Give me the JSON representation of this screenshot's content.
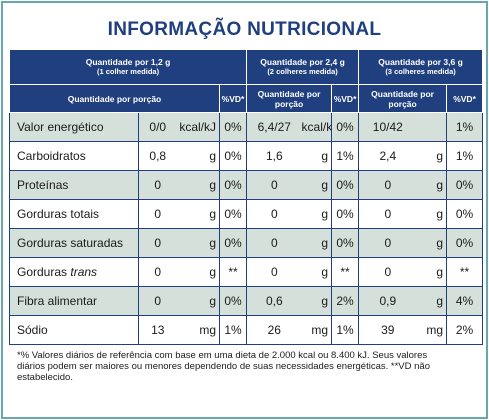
{
  "title": "INFORMAÇÃO NUTRICIONAL",
  "header": {
    "groups": [
      {
        "label": "Quantidade por 1,2 g",
        "sublabel": "(1 colher medida)",
        "portion": "Quantidade por porção",
        "vd": "%VD*"
      },
      {
        "label": "Quantidade por 2,4 g",
        "sublabel": "(2 colheres medida)",
        "portion": "Quantidade por porção",
        "vd": "%VD*"
      },
      {
        "label": "Quantidade por 3,6 g",
        "sublabel": "(3 colheres medida)",
        "portion": "Quantidade por porção",
        "vd": "%VD*"
      }
    ]
  },
  "rows": [
    {
      "name": "Valor energético",
      "cells": [
        [
          "0/0",
          "kcal/kJ",
          "0%"
        ],
        [
          "6,4/27",
          "kcal/kJ",
          "0%"
        ],
        [
          "10/42",
          null,
          "1%"
        ]
      ]
    },
    {
      "name": "Carboidratos",
      "cells": [
        [
          "0,8",
          "g",
          "0%"
        ],
        [
          "1,6",
          "g",
          "1%"
        ],
        [
          "2,4",
          "g",
          "1%"
        ]
      ]
    },
    {
      "name": "Proteínas",
      "cells": [
        [
          "0",
          "g",
          "0%"
        ],
        [
          "0",
          "g",
          "0%"
        ],
        [
          "0",
          "g",
          "0%"
        ]
      ]
    },
    {
      "name": "Gorduras totais",
      "cells": [
        [
          "0",
          "g",
          "0%"
        ],
        [
          "0",
          "g",
          "0%"
        ],
        [
          "0",
          "g",
          "0%"
        ]
      ]
    },
    {
      "name": "Gorduras saturadas",
      "cells": [
        [
          "0",
          "g",
          "0%"
        ],
        [
          "0",
          "g",
          "0%"
        ],
        [
          "0",
          "g",
          "0%"
        ]
      ]
    },
    {
      "name": "Gorduras",
      "name_italic": "trans",
      "cells": [
        [
          "0",
          "g",
          "**"
        ],
        [
          "0",
          "g",
          "**"
        ],
        [
          "0",
          "g",
          "**"
        ]
      ]
    },
    {
      "name": "Fibra alimentar",
      "cells": [
        [
          "0",
          "g",
          "0%"
        ],
        [
          "0,6",
          "g",
          "2%"
        ],
        [
          "0,9",
          "g",
          "4%"
        ]
      ]
    },
    {
      "name": "Sódio",
      "cells": [
        [
          "13",
          "mg",
          "1%"
        ],
        [
          "26",
          "mg",
          "1%"
        ],
        [
          "39",
          "mg",
          "2%"
        ]
      ]
    }
  ],
  "footnote": "*% Valores diários de referência com base em uma dieta de 2.000 kcal ou 8.400 kJ. Seus valores diários podem ser maiores ou menores dependendo de suas necessidades energéticas. **VD não estabelecido."
}
